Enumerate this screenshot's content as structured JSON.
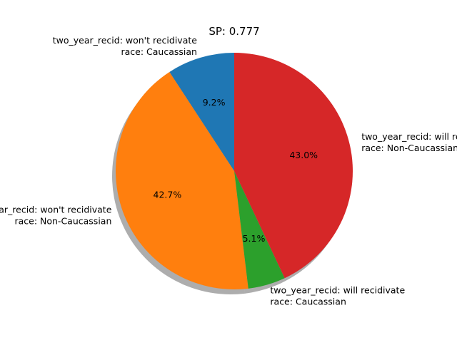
{
  "chart_data": {
    "type": "pie",
    "title": "SP: 0.777",
    "shadow": true,
    "start_angle_deg": 90,
    "direction": "counterclockwise",
    "slices": [
      {
        "label_lines": [
          "two_year_recid: won't recidivate",
          "race: Caucassian"
        ],
        "value": 9.2,
        "pct_label": "9.2%",
        "color": "#1f77b4"
      },
      {
        "label_lines": [
          "two_year_recid: won't recidivate",
          "race: Non-Caucassian"
        ],
        "value": 42.7,
        "pct_label": "42.7%",
        "color": "#ff7f0e"
      },
      {
        "label_lines": [
          "two_year_recid: will recidivate",
          "race: Caucassian"
        ],
        "value": 5.1,
        "pct_label": "5.1%",
        "color": "#2ca02c"
      },
      {
        "label_lines": [
          "two_year_recid: will recidivate",
          "race: Non-Caucassian"
        ],
        "value": 43.0,
        "pct_label": "43.0%",
        "color": "#d62728"
      }
    ]
  }
}
